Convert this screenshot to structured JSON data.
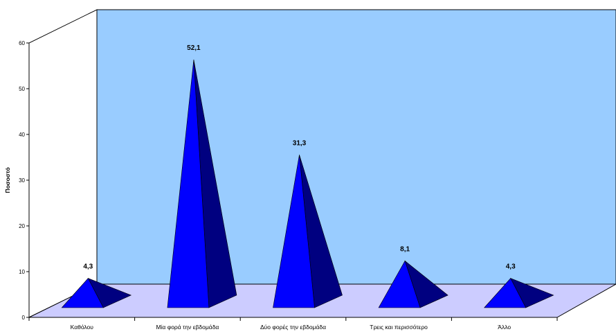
{
  "chart_data": {
    "type": "bar",
    "subtype": "3d-pyramid",
    "title": "",
    "xlabel": "",
    "ylabel": "Ποσοστό",
    "ylim": [
      0,
      60
    ],
    "yticks": [
      "0",
      "10",
      "20",
      "30",
      "40",
      "50",
      "60"
    ],
    "grid": false,
    "legend": "none",
    "categories": [
      "Καθόλου",
      "Μία φορά την εβδομάδα",
      "Δύο φορές την εβδομάδα",
      "Τρεις και περισσότερο",
      "Άλλο"
    ],
    "values": [
      4.3,
      52.1,
      31.3,
      8.1,
      4.3
    ],
    "data_labels": [
      "4,3",
      "52,1",
      "31,3",
      "8,1",
      "4,3"
    ],
    "colors": {
      "back_wall": "#99ccff",
      "floor": "#ccccff",
      "side_wall": "#ffffff",
      "pyramid_front": "#0000ff",
      "pyramid_side": "#000080",
      "outline": "#000000"
    }
  }
}
